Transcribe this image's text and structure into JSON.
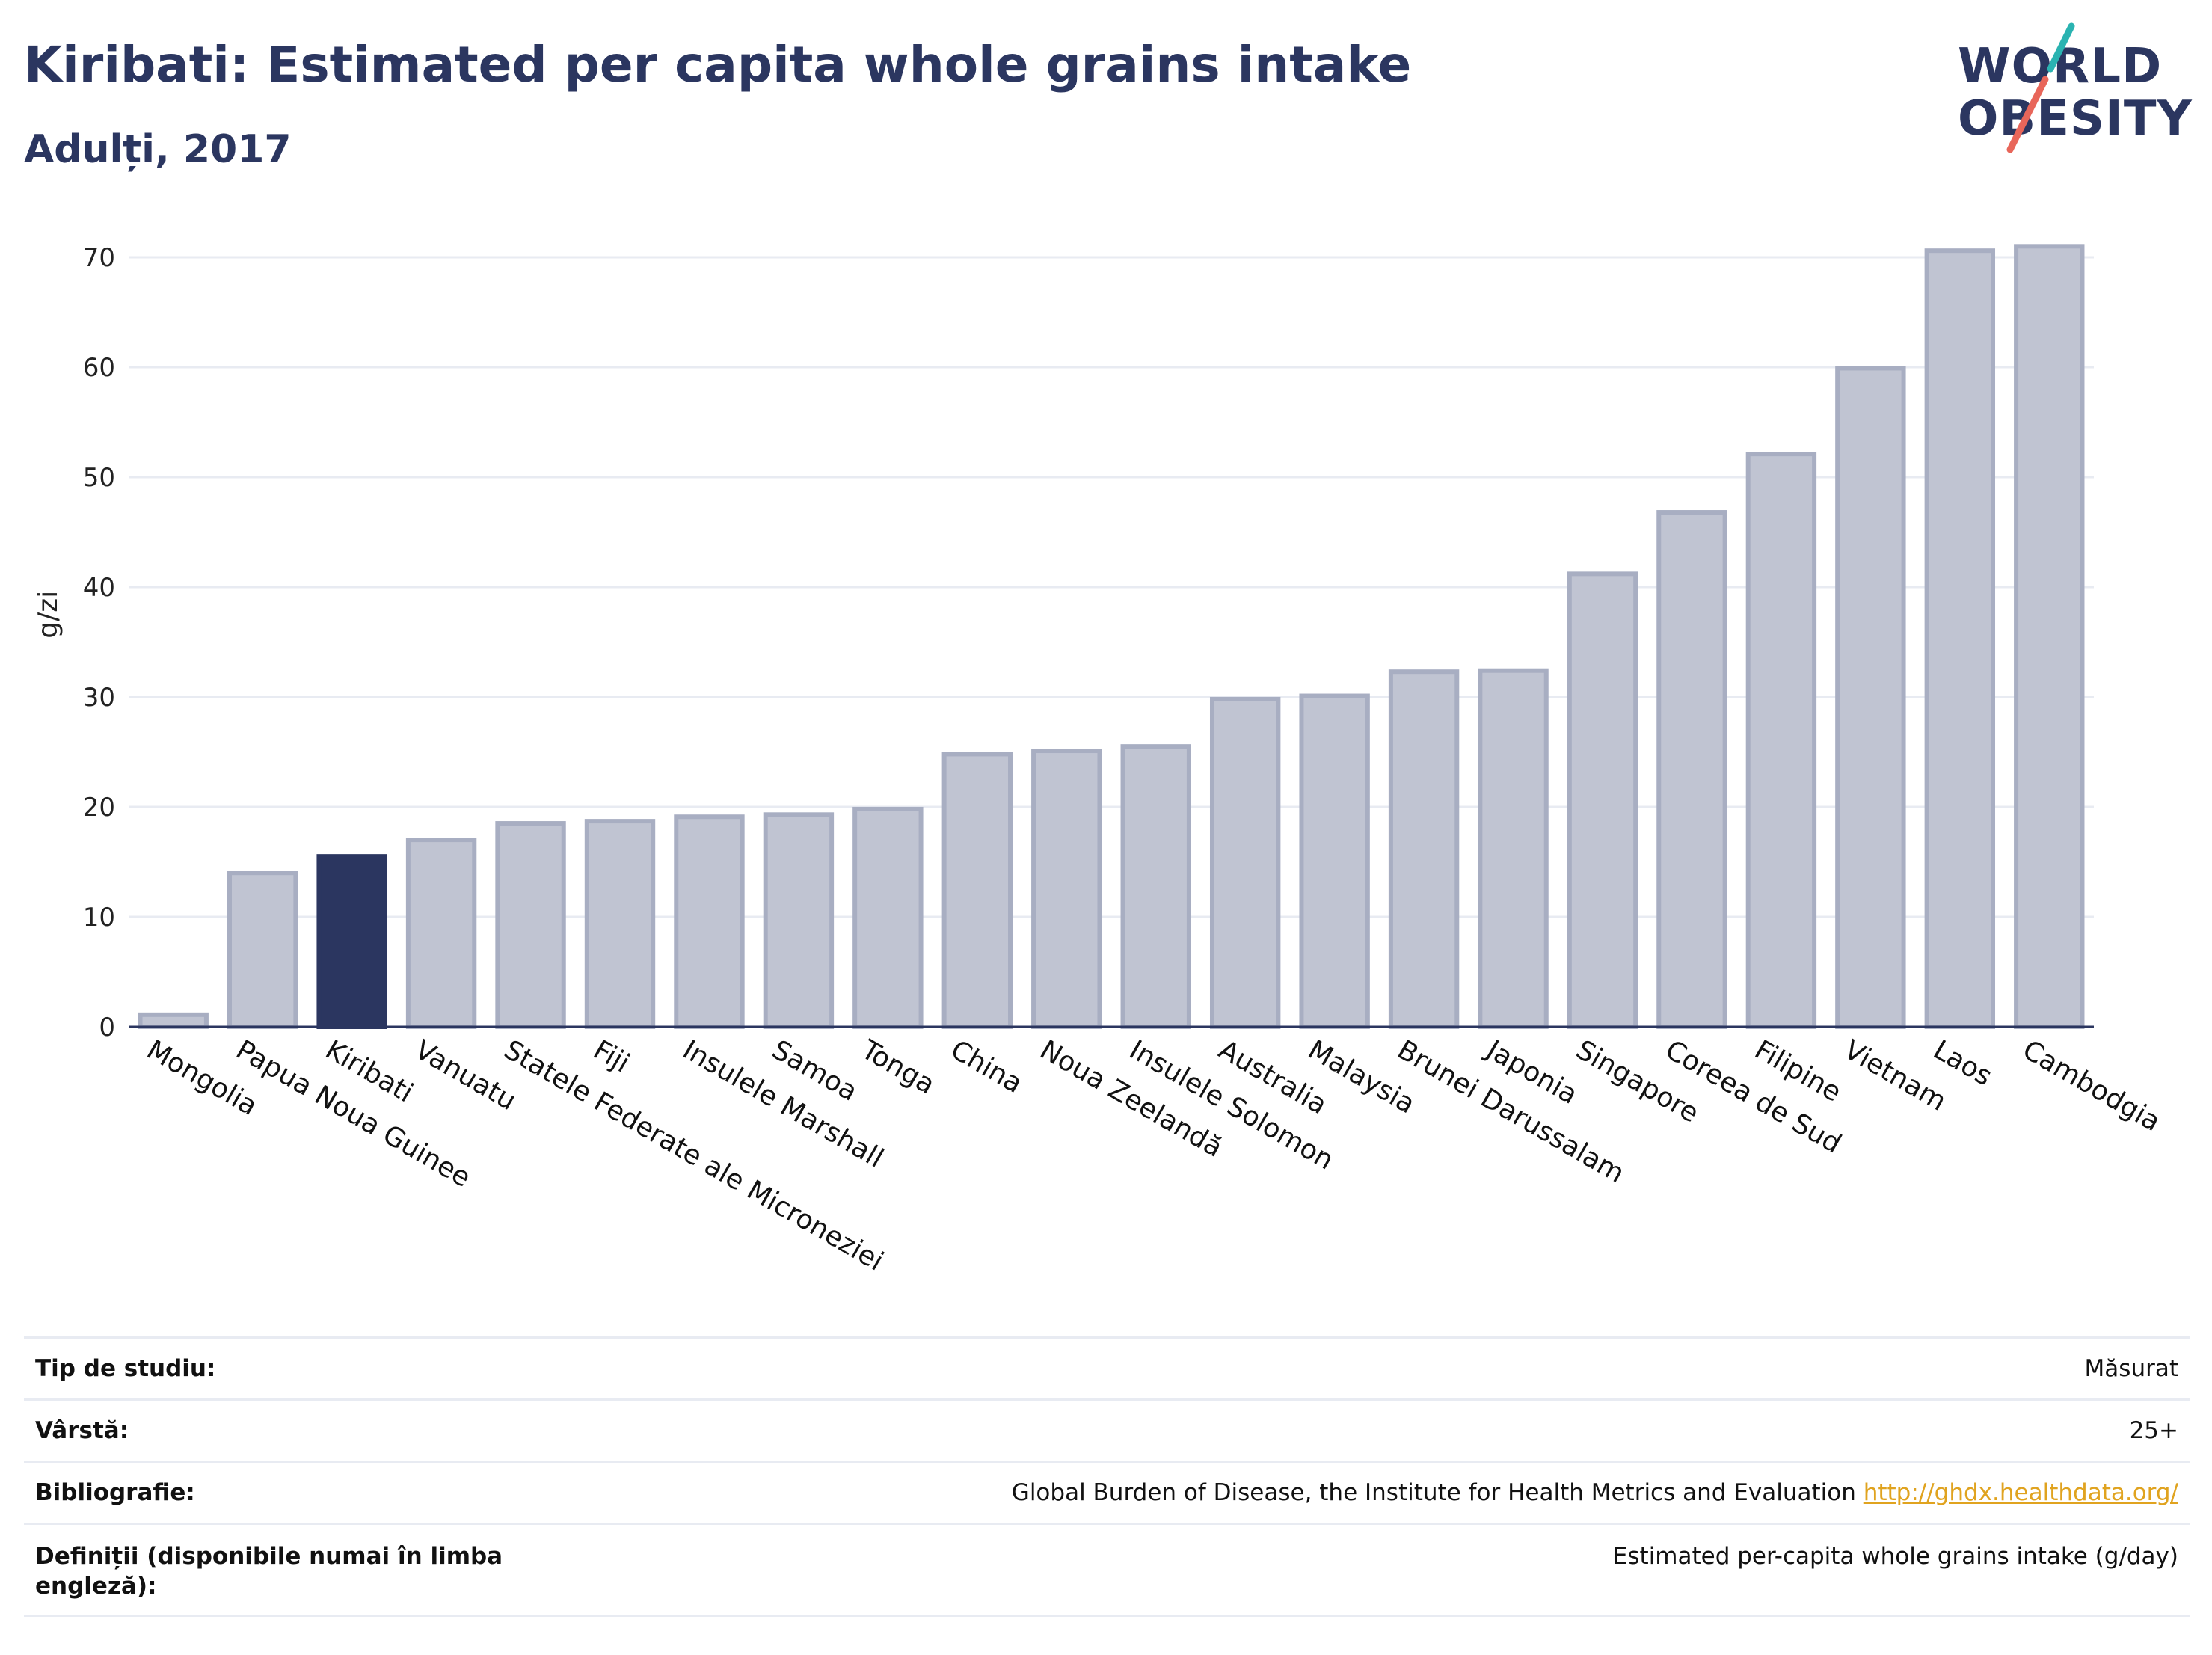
{
  "header": {
    "title": "Kiribati: Estimated per capita whole grains intake",
    "subtitle": "Adulți, 2017"
  },
  "logo": {
    "line1": "WORLD",
    "line2": "OBESITY",
    "accent_teal": "#2ab3b1",
    "accent_red": "#e8665a"
  },
  "colors": {
    "bar_default": "#c0c4d2",
    "bar_default_border": "#a8aec2",
    "bar_highlight": "#2b3660",
    "axis": "#2b3660",
    "grid": "#e8ebf2"
  },
  "chart_data": {
    "type": "bar",
    "title": "Kiribati: Estimated per capita whole grains intake",
    "subtitle": "Adulți, 2017",
    "ylabel": "g/zi",
    "xlabel": "",
    "ylim": [
      0,
      75
    ],
    "yticks": [
      0,
      10,
      20,
      30,
      40,
      50,
      60,
      70
    ],
    "grid": true,
    "highlight": "Kiribati",
    "categories": [
      "Mongolia",
      "Papua Noua Guinee",
      "Kiribati",
      "Vanuatu",
      "Statele Federate ale Microneziei",
      "Fiji",
      "Insulele Marshall",
      "Samoa",
      "Tonga",
      "China",
      "Noua Zeelandă",
      "Insulele Solomon",
      "Australia",
      "Malaysia",
      "Brunei Darussalam",
      "Japonia",
      "Singapore",
      "Coreea de Sud",
      "Filipine",
      "Vietnam",
      "Laos",
      "Cambodgia"
    ],
    "values": [
      1.1,
      14.0,
      15.5,
      17.0,
      18.5,
      18.7,
      19.1,
      19.3,
      19.8,
      24.8,
      25.1,
      25.5,
      29.8,
      30.1,
      32.3,
      32.4,
      41.2,
      46.8,
      52.1,
      59.9,
      70.6,
      71.0
    ]
  },
  "meta": {
    "rows": [
      {
        "label": "Tip de studiu:",
        "value": "Măsurat"
      },
      {
        "label": "Vârstă:",
        "value": "25+"
      },
      {
        "label": "Bibliografie:",
        "value": "Global Burden of Disease, the Institute for Health Metrics and Evaluation",
        "link": "http://ghdx.healthdata.org/"
      },
      {
        "label": "Definiții (disponibile numai în limba engleză):",
        "value": "Estimated per-capita whole grains intake (g/day)"
      }
    ]
  }
}
